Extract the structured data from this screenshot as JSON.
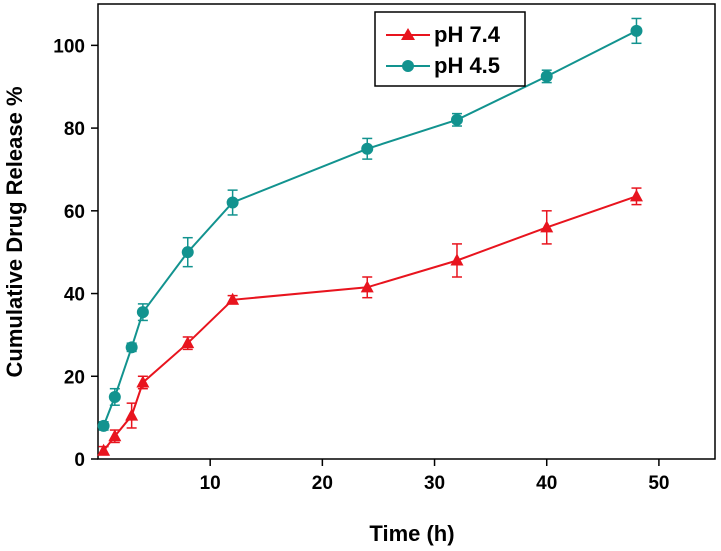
{
  "chart_data": {
    "type": "line",
    "title": "",
    "xlabel": "Time (h)",
    "ylabel": "Cumulative Drug Release %",
    "xlim": [
      0,
      55
    ],
    "ylim": [
      0,
      110
    ],
    "xticks": [
      10,
      20,
      30,
      40,
      50
    ],
    "yticks": [
      0,
      20,
      40,
      60,
      80,
      100
    ],
    "grid": false,
    "legend_position": "top",
    "series": [
      {
        "name": "pH 7.4",
        "color": "#e8141e",
        "marker": "triangle",
        "x": [
          0.5,
          1.5,
          3,
          4,
          8,
          12,
          24,
          32,
          40,
          48
        ],
        "y": [
          2,
          5.5,
          10.5,
          18.5,
          28,
          38.5,
          41.5,
          48,
          56,
          63.5
        ],
        "err": [
          1,
          1.5,
          3,
          1.5,
          1.5,
          1,
          2.5,
          4,
          4,
          2
        ]
      },
      {
        "name": "pH 4.5",
        "color": "#12938f",
        "marker": "circle",
        "x": [
          0.5,
          1.5,
          3,
          4,
          8,
          12,
          24,
          32,
          40,
          48
        ],
        "y": [
          8,
          15,
          27,
          35.5,
          50,
          62,
          75,
          82,
          92.5,
          103.5
        ],
        "err": [
          1,
          2,
          1,
          2,
          3.5,
          3,
          2.5,
          1.5,
          1.5,
          3
        ]
      }
    ]
  }
}
